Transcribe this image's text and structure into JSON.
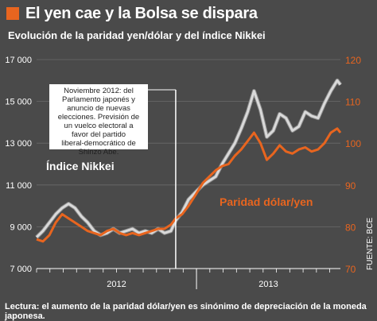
{
  "header": {
    "title": "El yen cae y la Bolsa se dispara",
    "subtitle": "Evolución de la paridad yen/dólar y del índice Nikkei"
  },
  "footer": {
    "note": "Lectura: el aumento de la paridad dólar/yen es sinónimo de depreciación de la moneda japonesa."
  },
  "colors": {
    "background": "#4a4a4a",
    "nikkei": "#d9d9d9",
    "nikkei_outline": "#8a8a8a",
    "usdjpy": "#e8651f",
    "accent": "#e8651f",
    "grid": "#6a6a6a"
  },
  "chart_data": {
    "type": "line",
    "left_axis": {
      "ticks": [
        "17 000",
        "15 000",
        "13 000",
        "11 000",
        "9 000",
        "7 000"
      ],
      "range": [
        7000,
        17000
      ]
    },
    "right_axis": {
      "ticks": [
        "120",
        "110",
        "100",
        "90",
        "80",
        "70"
      ],
      "range": [
        70,
        120
      ]
    },
    "x_axis": {
      "labels": [
        "2012",
        "2013"
      ],
      "range": [
        2012.0,
        2013.9
      ]
    },
    "series": [
      {
        "name": "Índice Nikkei",
        "axis": "left",
        "points": [
          [
            2012.0,
            8500
          ],
          [
            2012.04,
            8800
          ],
          [
            2012.08,
            9200
          ],
          [
            2012.12,
            9600
          ],
          [
            2012.16,
            9900
          ],
          [
            2012.2,
            10100
          ],
          [
            2012.24,
            9900
          ],
          [
            2012.28,
            9500
          ],
          [
            2012.32,
            9200
          ],
          [
            2012.36,
            8800
          ],
          [
            2012.4,
            8600
          ],
          [
            2012.44,
            8700
          ],
          [
            2012.48,
            8900
          ],
          [
            2012.52,
            8700
          ],
          [
            2012.56,
            8800
          ],
          [
            2012.6,
            8900
          ],
          [
            2012.64,
            8700
          ],
          [
            2012.68,
            8800
          ],
          [
            2012.72,
            8700
          ],
          [
            2012.76,
            8900
          ],
          [
            2012.8,
            8700
          ],
          [
            2012.84,
            8800
          ],
          [
            2012.87,
            9300
          ],
          [
            2012.91,
            9700
          ],
          [
            2012.95,
            10300
          ],
          [
            2013.0,
            10700
          ],
          [
            2013.04,
            11000
          ],
          [
            2013.08,
            11200
          ],
          [
            2013.12,
            11400
          ],
          [
            2013.16,
            12000
          ],
          [
            2013.2,
            12500
          ],
          [
            2013.24,
            13000
          ],
          [
            2013.28,
            13700
          ],
          [
            2013.32,
            14500
          ],
          [
            2013.36,
            15500
          ],
          [
            2013.4,
            14600
          ],
          [
            2013.44,
            13300
          ],
          [
            2013.48,
            13600
          ],
          [
            2013.52,
            14400
          ],
          [
            2013.56,
            14200
          ],
          [
            2013.6,
            13600
          ],
          [
            2013.64,
            13800
          ],
          [
            2013.68,
            14500
          ],
          [
            2013.72,
            14300
          ],
          [
            2013.76,
            14200
          ],
          [
            2013.8,
            14900
          ],
          [
            2013.84,
            15500
          ],
          [
            2013.88,
            16000
          ],
          [
            2013.9,
            15800
          ]
        ]
      },
      {
        "name": "Paridad dólar/yen",
        "axis": "right",
        "points": [
          [
            2012.0,
            77
          ],
          [
            2012.04,
            76.5
          ],
          [
            2012.08,
            78
          ],
          [
            2012.12,
            81
          ],
          [
            2012.16,
            83
          ],
          [
            2012.2,
            82
          ],
          [
            2012.24,
            81
          ],
          [
            2012.28,
            80
          ],
          [
            2012.32,
            79
          ],
          [
            2012.36,
            78.5
          ],
          [
            2012.4,
            78
          ],
          [
            2012.44,
            79
          ],
          [
            2012.48,
            79.5
          ],
          [
            2012.52,
            78.5
          ],
          [
            2012.56,
            78
          ],
          [
            2012.6,
            78.5
          ],
          [
            2012.64,
            78
          ],
          [
            2012.68,
            78.5
          ],
          [
            2012.72,
            79
          ],
          [
            2012.76,
            79.5
          ],
          [
            2012.8,
            79.5
          ],
          [
            2012.84,
            80.5
          ],
          [
            2012.87,
            82
          ],
          [
            2012.91,
            83
          ],
          [
            2012.95,
            85
          ],
          [
            2013.0,
            88
          ],
          [
            2013.04,
            90.5
          ],
          [
            2013.08,
            92
          ],
          [
            2013.12,
            93.5
          ],
          [
            2013.16,
            94.5
          ],
          [
            2013.2,
            95
          ],
          [
            2013.24,
            97
          ],
          [
            2013.28,
            98.5
          ],
          [
            2013.32,
            100.5
          ],
          [
            2013.36,
            102.5
          ],
          [
            2013.4,
            100
          ],
          [
            2013.44,
            96
          ],
          [
            2013.48,
            97.5
          ],
          [
            2013.52,
            99.5
          ],
          [
            2013.56,
            98
          ],
          [
            2013.6,
            97.5
          ],
          [
            2013.64,
            98.5
          ],
          [
            2013.68,
            99
          ],
          [
            2013.72,
            98
          ],
          [
            2013.76,
            98.5
          ],
          [
            2013.8,
            100
          ],
          [
            2013.84,
            102.5
          ],
          [
            2013.88,
            103.5
          ],
          [
            2013.9,
            102.5
          ]
        ]
      }
    ],
    "annotation": {
      "text": "Noviembre 2012: del Parlamento japonés y anuncio de nuevas elecciones. Previsión de un vuelco electoral a favor del partido liberal-democrático de Shinzo Abe.",
      "x": 2012.87
    },
    "series_labels": {
      "nikkei": "Índice Nikkei",
      "usdjpy": "Paridad dólar/yen"
    },
    "source": "FUENTE: BCE"
  }
}
